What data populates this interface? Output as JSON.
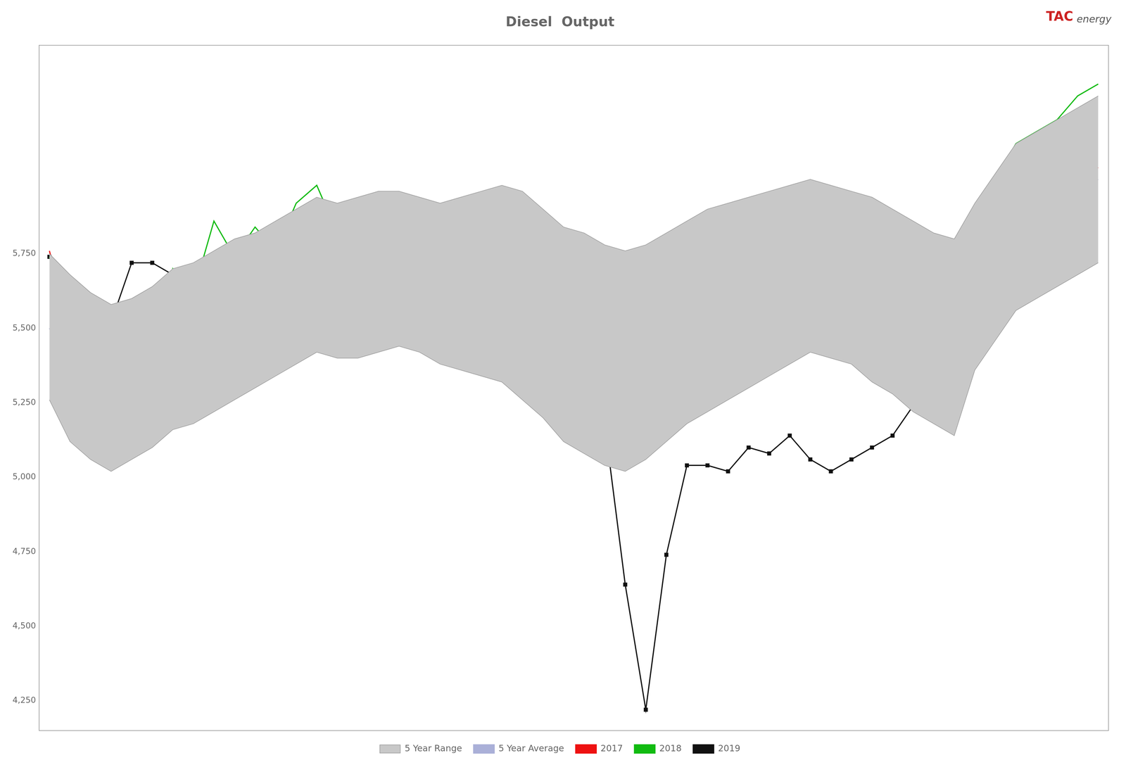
{
  "chart_data": {
    "type": "line",
    "title": "Diesel  Output",
    "annotations": [
      "TAC",
      "energy"
    ],
    "categories": [
      null,
      null,
      null,
      null,
      null,
      null,
      null,
      null,
      null,
      null,
      null,
      null,
      null,
      null,
      null,
      null,
      null,
      null,
      null,
      null,
      null,
      null,
      null,
      null,
      null,
      null,
      null,
      null,
      null,
      null,
      null,
      null,
      null,
      null,
      null,
      null,
      null,
      null,
      null,
      null,
      null,
      null,
      null,
      null,
      null,
      null,
      null,
      null,
      null,
      null,
      null,
      null
    ],
    "series": [
      {
        "name": "5 Year Range",
        "type": "range",
        "color": "#c8c8c8",
        "lower": [
          5260,
          5120,
          5060,
          5020,
          5060,
          5100,
          5160,
          5180,
          5220,
          5260,
          5300,
          5340,
          5380,
          5420,
          5400,
          5400,
          5420,
          5440,
          5420,
          5380,
          5360,
          5340,
          5320,
          5260,
          5200,
          5120,
          5080,
          5040,
          5020,
          5060,
          5120,
          5180,
          5220,
          5260,
          5300,
          5340,
          5380,
          5420,
          5400,
          5380,
          5320,
          5280,
          5220,
          5180,
          5140,
          5360,
          5460,
          5560,
          5600,
          5640,
          5680,
          5720
        ],
        "upper": [
          5750,
          5680,
          5620,
          5580,
          5600,
          5640,
          5700,
          5720,
          5760,
          5800,
          5820,
          5860,
          5900,
          5940,
          5920,
          5940,
          5960,
          5960,
          5940,
          5920,
          5940,
          5960,
          5980,
          5960,
          5900,
          5840,
          5820,
          5780,
          5760,
          5780,
          5820,
          5860,
          5900,
          5920,
          5940,
          5960,
          5980,
          6000,
          5980,
          5960,
          5940,
          5900,
          5860,
          5820,
          5800,
          5920,
          6020,
          6120,
          6160,
          6200,
          6240,
          6280
        ]
      },
      {
        "name": "5 Year Average",
        "type": "line",
        "color": "#aab0d8",
        "values": [
          5500,
          5380,
          5320,
          5280,
          5320,
          5360,
          5420,
          5440,
          5480,
          5520,
          5560,
          5600,
          5640,
          5680,
          5660,
          5660,
          5680,
          5700,
          5680,
          5640,
          5640,
          5640,
          5640,
          5600,
          5540,
          5460,
          5440,
          5400,
          5380,
          5420,
          5460,
          5520,
          5560,
          5580,
          5620,
          5640,
          5680,
          5720,
          5700,
          5680,
          5620,
          5580,
          5520,
          5480,
          5460,
          5640,
          5740,
          5840,
          5880,
          5920,
          5960,
          6000
        ]
      },
      {
        "name": "2017",
        "type": "line",
        "color": "#ee1111",
        "values": [
          5760,
          5480,
          5300,
          5200,
          5340,
          5360,
          5520,
          5460,
          5400,
          5500,
          5580,
          5600,
          5640,
          5740,
          5680,
          5620,
          5620,
          5640,
          5640,
          5580,
          5620,
          5620,
          5600,
          5540,
          5400,
          5360,
          5400,
          5320,
          5380,
          5500,
          5560,
          5540,
          5600,
          5540,
          5580,
          5600,
          5660,
          5720,
          5720,
          5660,
          5740,
          5820,
          5760,
          5740,
          5680,
          5800,
          5860,
          5920,
          5960,
          5940,
          6000,
          6040
        ]
      },
      {
        "name": "2018",
        "type": "line",
        "color": "#11bb11",
        "values": [
          5740,
          5600,
          5340,
          5520,
          5420,
          5240,
          5700,
          5620,
          5860,
          5740,
          5840,
          5760,
          5920,
          5980,
          5820,
          5760,
          5820,
          5860,
          5900,
          5860,
          5920,
          5880,
          5780,
          5700,
          5600,
          5480,
          5500,
          5440,
          5440,
          5540,
          5580,
          5640,
          5660,
          5700,
          5740,
          5800,
          5860,
          5940,
          5900,
          5900,
          5780,
          5740,
          5640,
          5580,
          5520,
          5840,
          6000,
          6120,
          6160,
          6200,
          6280,
          6320
        ]
      },
      {
        "name": "2019",
        "type": "line",
        "color": "#111111",
        "marker": "square",
        "values": [
          5740,
          5620,
          5480,
          5520,
          5720,
          5720,
          5680,
          5520,
          5540,
          5700,
          5780,
          5800,
          5800,
          5780,
          5780,
          5700,
          5760,
          5680,
          5720,
          5660,
          5620,
          5600,
          5600,
          5480,
          5440,
          5420,
          5320,
          5180,
          4640,
          4220,
          4740,
          5040,
          5040,
          5020,
          5100,
          5080,
          5140,
          5060,
          5020,
          5060,
          5100,
          5140,
          5240,
          5290,
          5380,
          5640,
          5740,
          5820,
          5860,
          null,
          null,
          null
        ]
      }
    ],
    "ylim": [
      4150,
      6450
    ],
    "yticks": [
      {
        "value": 4250,
        "label": "4,250"
      },
      {
        "value": 4500,
        "label": "4,500"
      },
      {
        "value": 4750,
        "label": "4,750"
      },
      {
        "value": 5000,
        "label": "5,000"
      },
      {
        "value": 5250,
        "label": "5,250"
      },
      {
        "value": 5500,
        "label": "5,500"
      },
      {
        "value": 5750,
        "label": "5,750"
      }
    ],
    "grid": false,
    "legend": "bottom",
    "tick_labels": "y"
  }
}
